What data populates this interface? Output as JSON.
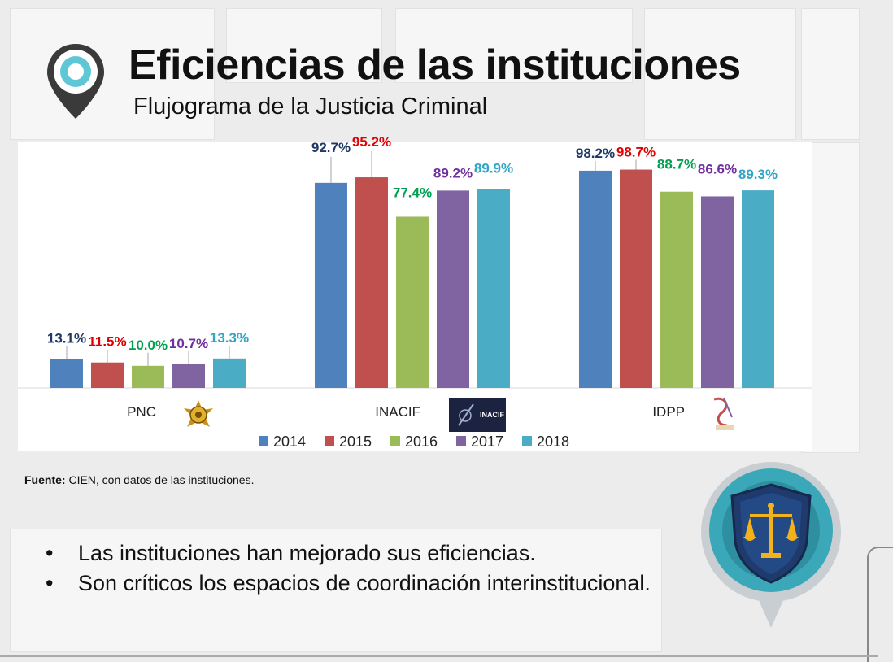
{
  "title": "Eficiencias de las instituciones",
  "subtitle": "Flujograma de la Justicia Criminal",
  "source": {
    "bold": "Fuente:",
    "text": " CIEN, con datos de las instituciones."
  },
  "bullets": [
    "Las instituciones han mejorado sus eficiencias.",
    "Son críticos los espacios de coordinación interinstitucional."
  ],
  "colors": {
    "2014": "#4f81bd",
    "2015": "#c0504d",
    "2016": "#9bbb59",
    "2017": "#8064a2",
    "2018": "#4bacc6",
    "label_2014": "#1f3864",
    "label_2015": "#e00000",
    "label_2016": "#00a050",
    "label_2017": "#7030a0",
    "label_2018": "#31a6c4"
  },
  "chart_data": {
    "type": "bar",
    "categories": [
      "PNC",
      "INACIF",
      "IDPP"
    ],
    "series": [
      {
        "name": "2014",
        "values": [
          13.1,
          92.7,
          98.2
        ],
        "labels": [
          "13.1%",
          "92.7%",
          "98.2%"
        ]
      },
      {
        "name": "2015",
        "values": [
          11.5,
          95.2,
          98.7
        ],
        "labels": [
          "11.5%",
          "95.2%",
          "98.7%"
        ]
      },
      {
        "name": "2016",
        "values": [
          10.0,
          77.4,
          88.7
        ],
        "labels": [
          "10.0%",
          "77.4%",
          "88.7%"
        ]
      },
      {
        "name": "2017",
        "values": [
          10.7,
          89.2,
          86.6
        ],
        "labels": [
          "10.7%",
          "89.2%",
          "86.6%"
        ]
      },
      {
        "name": "2018",
        "values": [
          13.3,
          89.9,
          89.3
        ],
        "labels": [
          "13.3%",
          "89.9%",
          "89.3%"
        ]
      }
    ],
    "ylim": [
      0,
      100
    ],
    "legend": "bottom",
    "xlabel": "",
    "ylabel": ""
  }
}
